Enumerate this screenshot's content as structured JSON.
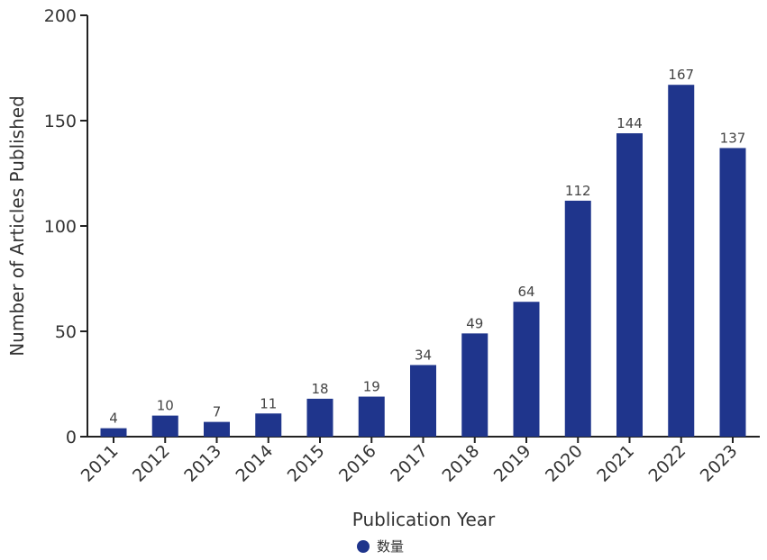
{
  "chart_data": {
    "type": "bar",
    "categories": [
      "2011",
      "2012",
      "2013",
      "2014",
      "2015",
      "2016",
      "2017",
      "2018",
      "2019",
      "2020",
      "2021",
      "2022",
      "2023"
    ],
    "series": [
      {
        "name": "数量",
        "values": [
          4,
          10,
          7,
          11,
          18,
          19,
          34,
          49,
          64,
          112,
          144,
          167,
          137
        ],
        "color": "#1f358c"
      }
    ],
    "xlabel": "Publication Year",
    "ylabel": "Number of Articles Published",
    "ylim": [
      0,
      200
    ],
    "yticks": [
      0,
      50,
      100,
      150,
      200
    ],
    "grid": false,
    "legend_position": "bottom-center"
  }
}
